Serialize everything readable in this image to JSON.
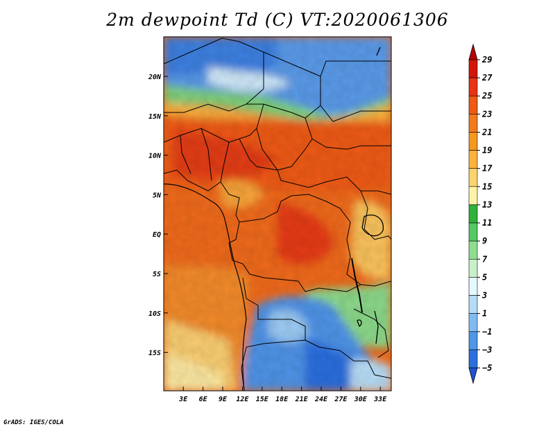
{
  "title": "2m dewpoint Td (C) VT:2020061306",
  "footer": "GrADS: IGES/COLA",
  "map": {
    "lat_ticks": [
      "20N",
      "15N",
      "10N",
      "5N",
      "EQ",
      "5S",
      "10S",
      "15S"
    ],
    "lon_ticks": [
      "3E",
      "6E",
      "9E",
      "12E",
      "15E",
      "18E",
      "21E",
      "24E",
      "27E",
      "30E",
      "33E"
    ]
  },
  "colorbar": {
    "labels": [
      "29",
      "27",
      "25",
      "23",
      "21",
      "19",
      "17",
      "15",
      "13",
      "11",
      "9",
      "7",
      "5",
      "3",
      "1",
      "−1",
      "−3",
      "−5"
    ],
    "colors": [
      "#b8000a",
      "#d31608",
      "#e83314",
      "#ef5a14",
      "#f27a1c",
      "#f6981e",
      "#f9b33e",
      "#fbd46e",
      "#fdf3a8",
      "#2fb13a",
      "#55c863",
      "#8ede8f",
      "#c9f1c8",
      "#e6f8ff",
      "#b4dcf8",
      "#80bcf2",
      "#4f95e8",
      "#2a6fde",
      "#1d55cf"
    ]
  }
}
